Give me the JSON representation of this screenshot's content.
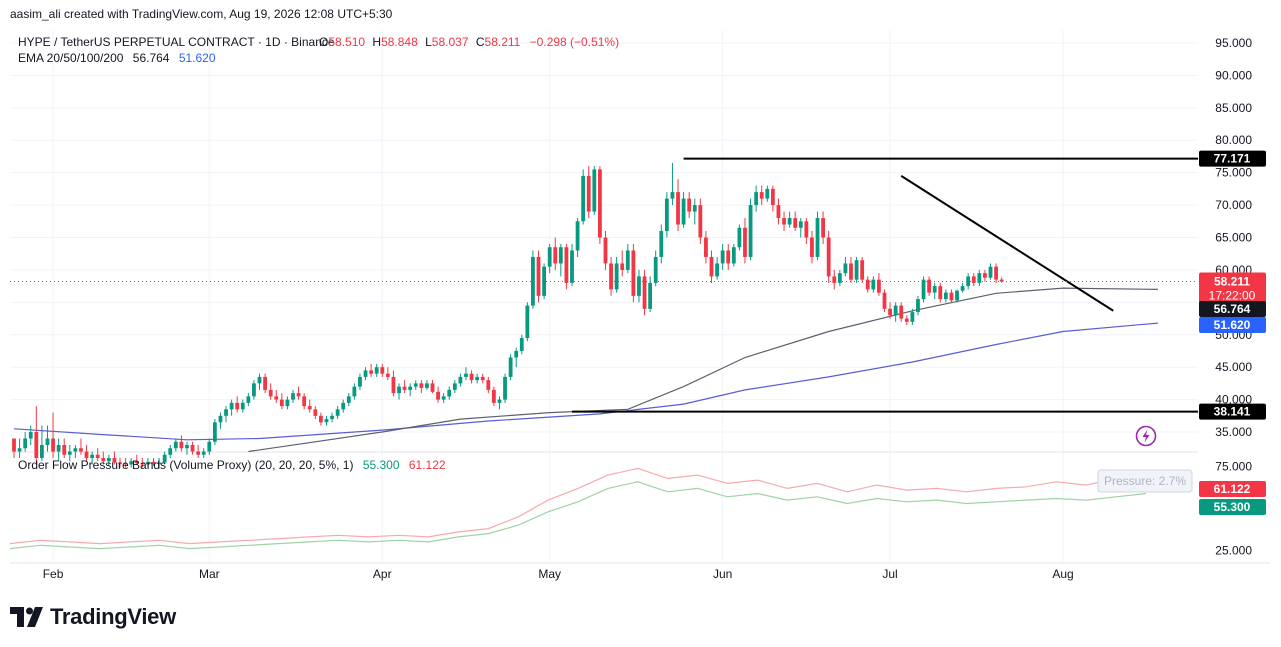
{
  "header": {
    "attribution": "aasim_ali created with TradingView.com, Aug 19, 2026 12:08 UTC+5:30"
  },
  "legend": {
    "symbol": "HYPE / TetherUS PERPETUAL CONTRACT · 1D · Binance",
    "open_label": "O",
    "open": "58.510",
    "high_label": "H",
    "high": "58.848",
    "low_label": "L",
    "low": "58.037",
    "close_label": "C",
    "close": "58.211",
    "change": "−0.298 (−0.51%)",
    "ema_title": "EMA 20/50/100/200",
    "ema_value_1": "56.764",
    "ema_value_2": "51.620",
    "osc_title": "Order Flow Pressure Bands (Volume Proxy) (20, 20, 20, 5%, 1)",
    "osc_value_1": "55.300",
    "osc_value_2": "61.122"
  },
  "price_badges": {
    "resistance": "77.171",
    "last_price": "58.211",
    "countdown": "17:22:00",
    "ema_a": "56.764",
    "ema_b": "51.620",
    "support": "38.141",
    "osc_upper": "61.122",
    "osc_lower": "55.300"
  },
  "osc_tooltip": "Pressure: 2.7%",
  "brand": {
    "name": "TradingView"
  },
  "colors": {
    "up": "#089981",
    "down": "#f23645",
    "ema_gray": "#5d606b",
    "ema_blue": "#5b5bd6",
    "black": "#000000",
    "osc_red": "#f7a9ae",
    "osc_green": "#9fd3a5",
    "purple": "#9c27b0"
  },
  "chart_data": {
    "type": "candlestick",
    "y_axis": {
      "min": 33,
      "max": 97,
      "ticks": [
        "95.000",
        "90.000",
        "85.000",
        "80.000",
        "75.000",
        "70.000",
        "65.000",
        "60.000",
        "55.000",
        "50.000",
        "45.000",
        "40.000",
        "35.000"
      ]
    },
    "x_axis": {
      "labels": [
        "Feb",
        "Mar",
        "Apr",
        "May",
        "Jun",
        "Jul",
        "Aug"
      ]
    },
    "horizontal_lines": [
      {
        "label": "77.171",
        "value": 77.171,
        "from_date": "2026-05-25"
      },
      {
        "label": "38.141",
        "value": 38.141,
        "from_date": "2026-05-05"
      }
    ],
    "trend_line": {
      "from": {
        "date": "2026-07-03",
        "value": 74.5
      },
      "to": {
        "date": "2026-08-10",
        "value": 53.7
      }
    },
    "ohlc_start_date": "2026-01-25",
    "ohlc": [
      [
        34,
        33.5,
        31,
        32
      ],
      [
        32,
        34,
        31,
        32.5
      ],
      [
        32.5,
        35,
        32,
        34
      ],
      [
        34,
        36,
        33,
        35
      ],
      [
        35,
        39,
        30,
        31
      ],
      [
        31,
        36,
        30.5,
        33
      ],
      [
        33,
        36,
        32,
        34
      ],
      [
        34,
        38,
        31,
        32
      ],
      [
        32,
        34,
        30.5,
        33
      ],
      [
        33,
        34,
        31,
        31.5
      ],
      [
        31.5,
        33,
        30.5,
        32
      ],
      [
        32,
        33,
        31,
        32.5
      ],
      [
        32.5,
        34,
        31.5,
        32
      ],
      [
        32,
        33,
        30.5,
        31
      ],
      [
        31,
        32,
        30,
        31.5
      ],
      [
        31.5,
        32.5,
        30.5,
        31
      ],
      [
        31,
        32,
        30,
        30.5
      ],
      [
        30.5,
        31.5,
        29.8,
        31
      ],
      [
        31,
        32,
        30,
        30.3
      ],
      [
        30.3,
        31,
        29.5,
        30.2
      ],
      [
        30.2,
        31,
        29.5,
        30
      ],
      [
        30,
        31,
        29.5,
        30.5
      ],
      [
        30.5,
        31.5,
        30,
        30.2
      ],
      [
        30.2,
        31,
        29.5,
        30
      ],
      [
        30,
        31,
        29.5,
        30.4
      ],
      [
        30.4,
        31,
        29.8,
        30.1
      ],
      [
        30.1,
        31,
        29.5,
        30.3
      ],
      [
        30.3,
        32,
        30,
        31.5
      ],
      [
        31.5,
        33,
        31,
        32.5
      ],
      [
        32.5,
        34,
        32,
        33.5
      ],
      [
        33.5,
        34.5,
        32,
        32.5
      ],
      [
        32.5,
        33.5,
        31.5,
        33
      ],
      [
        33,
        33.5,
        31.5,
        32
      ],
      [
        32,
        33,
        31,
        31.5
      ],
      [
        31.5,
        32.5,
        31,
        32
      ],
      [
        32,
        34,
        31.5,
        33.5
      ],
      [
        33.5,
        37,
        33,
        36.5
      ],
      [
        36.5,
        38,
        35.5,
        37.5
      ],
      [
        37.5,
        39,
        36.5,
        38.5
      ],
      [
        38.5,
        40,
        37.5,
        39.5
      ],
      [
        39.5,
        40.5,
        38,
        38.5
      ],
      [
        38.5,
        40,
        38,
        39.5
      ],
      [
        39.5,
        41,
        39,
        40.5
      ],
      [
        40.5,
        43,
        40,
        42.5
      ],
      [
        42.5,
        44,
        41.5,
        43.5
      ],
      [
        43.5,
        44,
        41,
        41.5
      ],
      [
        41.5,
        42.5,
        40,
        40.5
      ],
      [
        40.5,
        41.5,
        39.5,
        40
      ],
      [
        40,
        41,
        38.5,
        39
      ],
      [
        39,
        40.5,
        38.5,
        40
      ],
      [
        40,
        41.5,
        39.5,
        41
      ],
      [
        41,
        42,
        40,
        40.5
      ],
      [
        40.5,
        41,
        38.5,
        39
      ],
      [
        39,
        40,
        38,
        38.5
      ],
      [
        38.5,
        39,
        37,
        37.5
      ],
      [
        37.5,
        38,
        36,
        36.5
      ],
      [
        36.5,
        37.5,
        36,
        37
      ],
      [
        37,
        38,
        36.5,
        37.5
      ],
      [
        37.5,
        39,
        37,
        38.5
      ],
      [
        38.5,
        40,
        38,
        39.5
      ],
      [
        39.5,
        41,
        39,
        40.5
      ],
      [
        40.5,
        42.5,
        40,
        42
      ],
      [
        42,
        44,
        41.5,
        43.5
      ],
      [
        43.5,
        45,
        43,
        44.5
      ],
      [
        44.5,
        45.5,
        43.5,
        44
      ],
      [
        44,
        45.5,
        43.5,
        45
      ],
      [
        45,
        45.5,
        43.5,
        44
      ],
      [
        44,
        45,
        43,
        43.5
      ],
      [
        43.5,
        44.5,
        40.5,
        41
      ],
      [
        41,
        42.5,
        40,
        42
      ],
      [
        42,
        43,
        41,
        41.5
      ],
      [
        41.5,
        42.5,
        40.5,
        42
      ],
      [
        42,
        43,
        41.5,
        42.5
      ],
      [
        42.5,
        43,
        41,
        41.8
      ],
      [
        41.8,
        43,
        41.5,
        42.5
      ],
      [
        42.5,
        43,
        41,
        41.2
      ],
      [
        41.2,
        42,
        39.5,
        40
      ],
      [
        40,
        41,
        39.5,
        40.5
      ],
      [
        40.5,
        42,
        40,
        41.5
      ],
      [
        41.5,
        43,
        41,
        42.5
      ],
      [
        42.5,
        44,
        42,
        43.5
      ],
      [
        43.5,
        45,
        43,
        44
      ],
      [
        44,
        44.5,
        42.5,
        43
      ],
      [
        43,
        44,
        42.5,
        43.5
      ],
      [
        43.5,
        44,
        42.5,
        43
      ],
      [
        43,
        43.5,
        41,
        41.5
      ],
      [
        41.5,
        42,
        39,
        39.5
      ],
      [
        39.5,
        40.5,
        38.5,
        40
      ],
      [
        40,
        44,
        39.5,
        43.5
      ],
      [
        43.5,
        47,
        43,
        46.5
      ],
      [
        46.5,
        48,
        45,
        47.5
      ],
      [
        47.5,
        50,
        47,
        49.5
      ],
      [
        49.5,
        55,
        49,
        54.5
      ],
      [
        54.5,
        63,
        54,
        62
      ],
      [
        62,
        63,
        55,
        56
      ],
      [
        56,
        61,
        55.5,
        60.5
      ],
      [
        60.5,
        64,
        59.5,
        63.5
      ],
      [
        63.5,
        65,
        60,
        61
      ],
      [
        61,
        64,
        59,
        63.5
      ],
      [
        63.5,
        64,
        57,
        58
      ],
      [
        58,
        64,
        57.5,
        63
      ],
      [
        63,
        68,
        62,
        67.5
      ],
      [
        67.5,
        75.5,
        67,
        74.5
      ],
      [
        74.5,
        76,
        68,
        69
      ],
      [
        69,
        76,
        68.5,
        75.5
      ],
      [
        75.5,
        76,
        64,
        65
      ],
      [
        65,
        66,
        60,
        61
      ],
      [
        61,
        62,
        56,
        57
      ],
      [
        57,
        62,
        56.5,
        61
      ],
      [
        61,
        63,
        59,
        60
      ],
      [
        60,
        64,
        59.5,
        63
      ],
      [
        63,
        64,
        55,
        56
      ],
      [
        56,
        60,
        55,
        59
      ],
      [
        59,
        60,
        53,
        54
      ],
      [
        54,
        59,
        53.5,
        58
      ],
      [
        58,
        63,
        57.5,
        62
      ],
      [
        62,
        67,
        61,
        66
      ],
      [
        66,
        72,
        65,
        71
      ],
      [
        71,
        76.5,
        70,
        72
      ],
      [
        72,
        74,
        66,
        67
      ],
      [
        67,
        72,
        66.5,
        71
      ],
      [
        71,
        72,
        68,
        69
      ],
      [
        69,
        71,
        67,
        70
      ],
      [
        70,
        71,
        64,
        65
      ],
      [
        65,
        66,
        61,
        62
      ],
      [
        62,
        63,
        58,
        59
      ],
      [
        59,
        62,
        58.5,
        61
      ],
      [
        61,
        64,
        60,
        63
      ],
      [
        63,
        64,
        60,
        61
      ],
      [
        61,
        64,
        60.5,
        63.5
      ],
      [
        63.5,
        67,
        63,
        66.5
      ],
      [
        66.5,
        68,
        61,
        62
      ],
      [
        62,
        71,
        61.5,
        70
      ],
      [
        70,
        73,
        69,
        72
      ],
      [
        72,
        73,
        70,
        71
      ],
      [
        71,
        73,
        70.5,
        72.5
      ],
      [
        72.5,
        73,
        69,
        70
      ],
      [
        70,
        71,
        67,
        68
      ],
      [
        68,
        69,
        66,
        67
      ],
      [
        67,
        69,
        66.5,
        68
      ],
      [
        68,
        69,
        66,
        66.5
      ],
      [
        66.5,
        68,
        65,
        67.5
      ],
      [
        67.5,
        68,
        64,
        65
      ],
      [
        65,
        66,
        61,
        62
      ],
      [
        62,
        69,
        61.5,
        68
      ],
      [
        68,
        69,
        64,
        65
      ],
      [
        65,
        66,
        58,
        59
      ],
      [
        59,
        60,
        57,
        58
      ],
      [
        58,
        60,
        57.5,
        59.5
      ],
      [
        59.5,
        62,
        59,
        61
      ],
      [
        61,
        62,
        58,
        58.5
      ],
      [
        58.5,
        62,
        58,
        61.5
      ],
      [
        61.5,
        62,
        58,
        58.5
      ],
      [
        58.5,
        59,
        56.5,
        57
      ],
      [
        57,
        59,
        56.5,
        58.5
      ],
      [
        58.5,
        59.5,
        56,
        56.5
      ],
      [
        56.5,
        57,
        53.5,
        54
      ],
      [
        54,
        55,
        52.5,
        53
      ],
      [
        53,
        55,
        52,
        54.5
      ],
      [
        54.5,
        55,
        52,
        52.5
      ],
      [
        52.5,
        53,
        51.5,
        52
      ],
      [
        52,
        54,
        51.5,
        53.5
      ],
      [
        53.5,
        56,
        53,
        55.5
      ],
      [
        55.5,
        59,
        55,
        58.5
      ],
      [
        58.5,
        59,
        56,
        56.5
      ],
      [
        56.5,
        58,
        55.5,
        57.5
      ],
      [
        57.5,
        58,
        55,
        55.5
      ],
      [
        55.5,
        57,
        55,
        56.5
      ],
      [
        56.5,
        57,
        55,
        55.3
      ],
      [
        55.3,
        57,
        55,
        56.8
      ],
      [
        56.8,
        58,
        56.5,
        57.5
      ],
      [
        57.5,
        59.5,
        57,
        59
      ],
      [
        59,
        59.5,
        57.5,
        58
      ],
      [
        58,
        60,
        57.5,
        59.5
      ],
      [
        59.5,
        60,
        58.2,
        58.8
      ],
      [
        58.8,
        61,
        58.5,
        60.5
      ],
      [
        60.5,
        61,
        58,
        58.51
      ],
      [
        58.51,
        58.848,
        58.037,
        58.211
      ]
    ],
    "ema_gray": [
      [
        "2026-03-08",
        32
      ],
      [
        "2026-03-20",
        33.5
      ],
      [
        "2026-04-01",
        35
      ],
      [
        "2026-04-15",
        37
      ],
      [
        "2026-05-01",
        38
      ],
      [
        "2026-05-15",
        38.5
      ],
      [
        "2026-05-25",
        42
      ],
      [
        "2026-06-05",
        46.5
      ],
      [
        "2026-06-20",
        50.5
      ],
      [
        "2026-07-05",
        53.7
      ],
      [
        "2026-07-20",
        56.4
      ],
      [
        "2026-08-01",
        57.2
      ],
      [
        "2026-08-18",
        57
      ]
    ],
    "ema_blue": [
      [
        "2026-01-25",
        35.5
      ],
      [
        "2026-02-10",
        34.6
      ],
      [
        "2026-02-25",
        33.8
      ],
      [
        "2026-03-10",
        34
      ],
      [
        "2026-04-01",
        35.3
      ],
      [
        "2026-04-20",
        36.7
      ],
      [
        "2026-05-10",
        37.8
      ],
      [
        "2026-05-25",
        39.3
      ],
      [
        "2026-06-05",
        41.5
      ],
      [
        "2026-06-20",
        43.5
      ],
      [
        "2026-07-05",
        45.8
      ],
      [
        "2026-07-20",
        48.5
      ],
      [
        "2026-08-01",
        50.5
      ],
      [
        "2026-08-18",
        51.8
      ]
    ],
    "oscillator": {
      "y_ticks": [
        "75.000",
        "50.000",
        "25.000"
      ],
      "y_min": 18,
      "y_max": 82,
      "upper_band": [
        [
          0,
          29
        ],
        [
          10,
          31
        ],
        [
          20,
          30
        ],
        [
          30,
          29
        ],
        [
          40,
          30
        ],
        [
          50,
          31
        ],
        [
          60,
          29
        ],
        [
          70,
          30
        ],
        [
          80,
          31
        ],
        [
          90,
          32
        ],
        [
          100,
          33
        ],
        [
          110,
          34
        ],
        [
          120,
          33
        ],
        [
          130,
          34
        ],
        [
          140,
          33
        ],
        [
          150,
          36
        ],
        [
          160,
          38
        ],
        [
          170,
          45
        ],
        [
          180,
          55
        ],
        [
          190,
          62
        ],
        [
          200,
          70
        ],
        [
          210,
          74
        ],
        [
          220,
          68
        ],
        [
          230,
          70
        ],
        [
          240,
          65
        ],
        [
          250,
          67
        ],
        [
          260,
          62
        ],
        [
          270,
          65
        ],
        [
          280,
          60
        ],
        [
          290,
          64
        ],
        [
          300,
          61
        ],
        [
          310,
          62
        ],
        [
          320,
          60
        ],
        [
          330,
          62
        ],
        [
          340,
          63
        ],
        [
          350,
          66
        ],
        [
          360,
          64
        ],
        [
          370,
          68
        ],
        [
          380,
          70
        ]
      ],
      "lower_band": [
        [
          0,
          26
        ],
        [
          10,
          28
        ],
        [
          20,
          27
        ],
        [
          30,
          26
        ],
        [
          40,
          27
        ],
        [
          50,
          28
        ],
        [
          60,
          26
        ],
        [
          70,
          27
        ],
        [
          80,
          28
        ],
        [
          90,
          29
        ],
        [
          100,
          30
        ],
        [
          110,
          31
        ],
        [
          120,
          30
        ],
        [
          130,
          31
        ],
        [
          140,
          30
        ],
        [
          150,
          33
        ],
        [
          160,
          35
        ],
        [
          170,
          40
        ],
        [
          180,
          48
        ],
        [
          190,
          54
        ],
        [
          200,
          62
        ],
        [
          210,
          66
        ],
        [
          220,
          60
        ],
        [
          230,
          62
        ],
        [
          240,
          57
        ],
        [
          250,
          59
        ],
        [
          260,
          55
        ],
        [
          270,
          57
        ],
        [
          280,
          53
        ],
        [
          290,
          56
        ],
        [
          300,
          54
        ],
        [
          310,
          55
        ],
        [
          320,
          53
        ],
        [
          330,
          54
        ],
        [
          340,
          55
        ],
        [
          350,
          56
        ],
        [
          360,
          55
        ],
        [
          370,
          57
        ],
        [
          380,
          59
        ]
      ]
    }
  }
}
